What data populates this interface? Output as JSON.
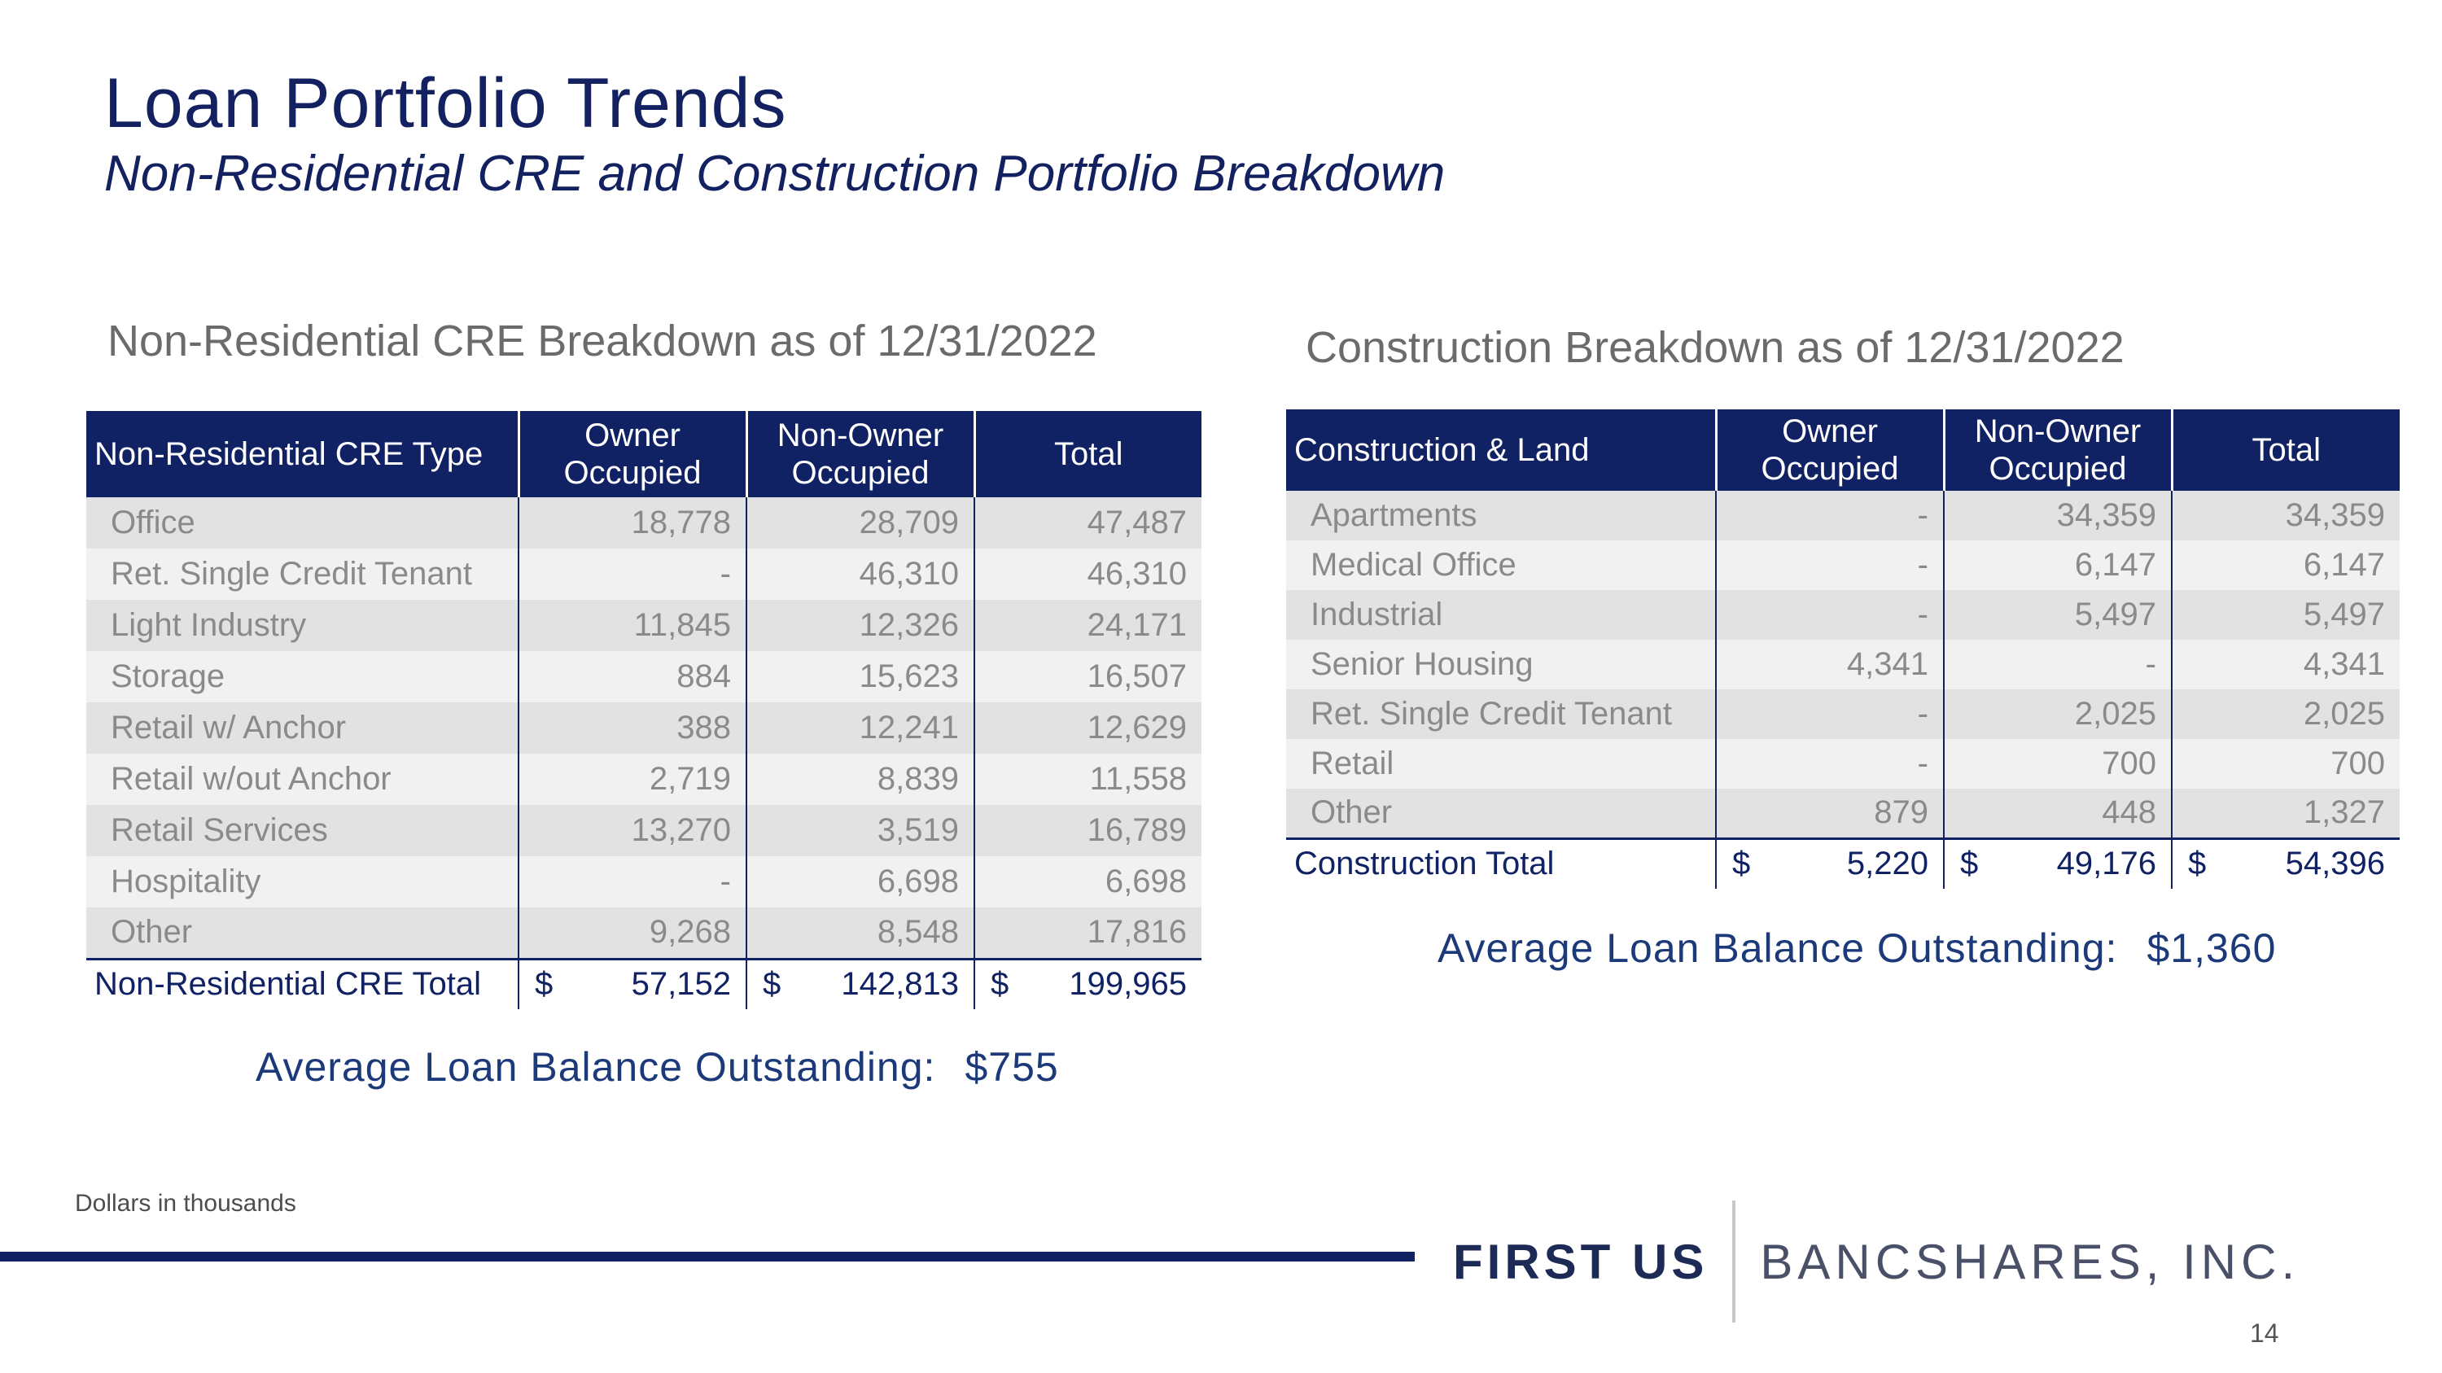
{
  "header": {
    "title": "Loan Portfolio Trends",
    "subtitle": "Non-Residential CRE and Construction Portfolio Breakdown"
  },
  "cre": {
    "section_title": "Non-Residential CRE Breakdown as of 12/31/2022",
    "columns": [
      "Non-Residential CRE Type",
      "Owner\nOccupied",
      "Non-Owner\nOccupied",
      "Total"
    ],
    "rows": [
      [
        "Office",
        "18,778",
        "28,709",
        "47,487"
      ],
      [
        "Ret. Single Credit Tenant",
        "-",
        "46,310",
        "46,310"
      ],
      [
        "Light Industry",
        "11,845",
        "12,326",
        "24,171"
      ],
      [
        "Storage",
        "884",
        "15,623",
        "16,507"
      ],
      [
        "Retail w/ Anchor",
        "388",
        "12,241",
        "12,629"
      ],
      [
        "Retail w/out Anchor",
        "2,719",
        "8,839",
        "11,558"
      ],
      [
        "Retail Services",
        "13,270",
        "3,519",
        "16,789"
      ],
      [
        "Hospitality",
        "-",
        "6,698",
        "6,698"
      ],
      [
        "Other",
        "9,268",
        "8,548",
        "17,816"
      ]
    ],
    "total": {
      "label": "Non-Residential CRE Total",
      "currency": "$",
      "values": [
        "57,152",
        "142,813",
        "199,965"
      ]
    },
    "avg_label": "Average Loan Balance Outstanding:",
    "avg_value": "$755"
  },
  "construction": {
    "section_title": "Construction Breakdown as of 12/31/2022",
    "columns": [
      "Construction & Land",
      "Owner\nOccupied",
      "Non-Owner\nOccupied",
      "Total"
    ],
    "rows": [
      [
        "Apartments",
        "-",
        "34,359",
        "34,359"
      ],
      [
        "Medical Office",
        "-",
        "6,147",
        "6,147"
      ],
      [
        "Industrial",
        "-",
        "5,497",
        "5,497"
      ],
      [
        "Senior Housing",
        "4,341",
        "-",
        "4,341"
      ],
      [
        "Ret. Single Credit Tenant",
        "-",
        "2,025",
        "2,025"
      ],
      [
        "Retail",
        "-",
        "700",
        "700"
      ],
      [
        "Other",
        "879",
        "448",
        "1,327"
      ]
    ],
    "total": {
      "label": "Construction Total",
      "currency": "$",
      "values": [
        "5,220",
        "49,176",
        "54,396"
      ]
    },
    "avg_label": "Average Loan Balance Outstanding:",
    "avg_value": "$1,360"
  },
  "footer": {
    "note": "Dollars in thousands",
    "logo_bold": "FIRST US",
    "logo_light": "BANCSHARES, INC.",
    "page_number": "14"
  }
}
